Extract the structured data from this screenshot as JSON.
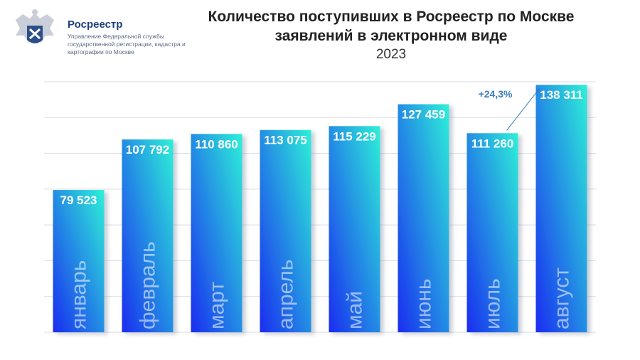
{
  "header": {
    "org_name": "Росреестр",
    "org_desc": "Управление Федеральной службы государственной регистрации, кадастра и картографии по Москве",
    "logo_icon": "double-headed-eagle-emblem"
  },
  "colors": {
    "bar_top": "#2ef0d8",
    "bar_bottom": "#1a2cf0",
    "grid": "#d7dbe4",
    "annotation": "#3a7bbf"
  },
  "chart_data": {
    "type": "bar",
    "title": "Количество поступивших в Росреестр по Москве заявлений в электронном виде",
    "subtitle": "2023",
    "categories": [
      "январь",
      "февраль",
      "март",
      "апрель",
      "май",
      "июнь",
      "июль",
      "август"
    ],
    "values": [
      79523,
      107792,
      110860,
      113075,
      115229,
      127459,
      111260,
      138311
    ],
    "value_labels": [
      "79 523",
      "107 792",
      "110 860",
      "113 075",
      "115 229",
      "127 459",
      "111 260",
      "138 311"
    ],
    "ylim": [
      0,
      140000
    ],
    "grid": true,
    "annotation": {
      "text": "+24,3%",
      "from_category": "июль",
      "to_category": "август"
    }
  }
}
